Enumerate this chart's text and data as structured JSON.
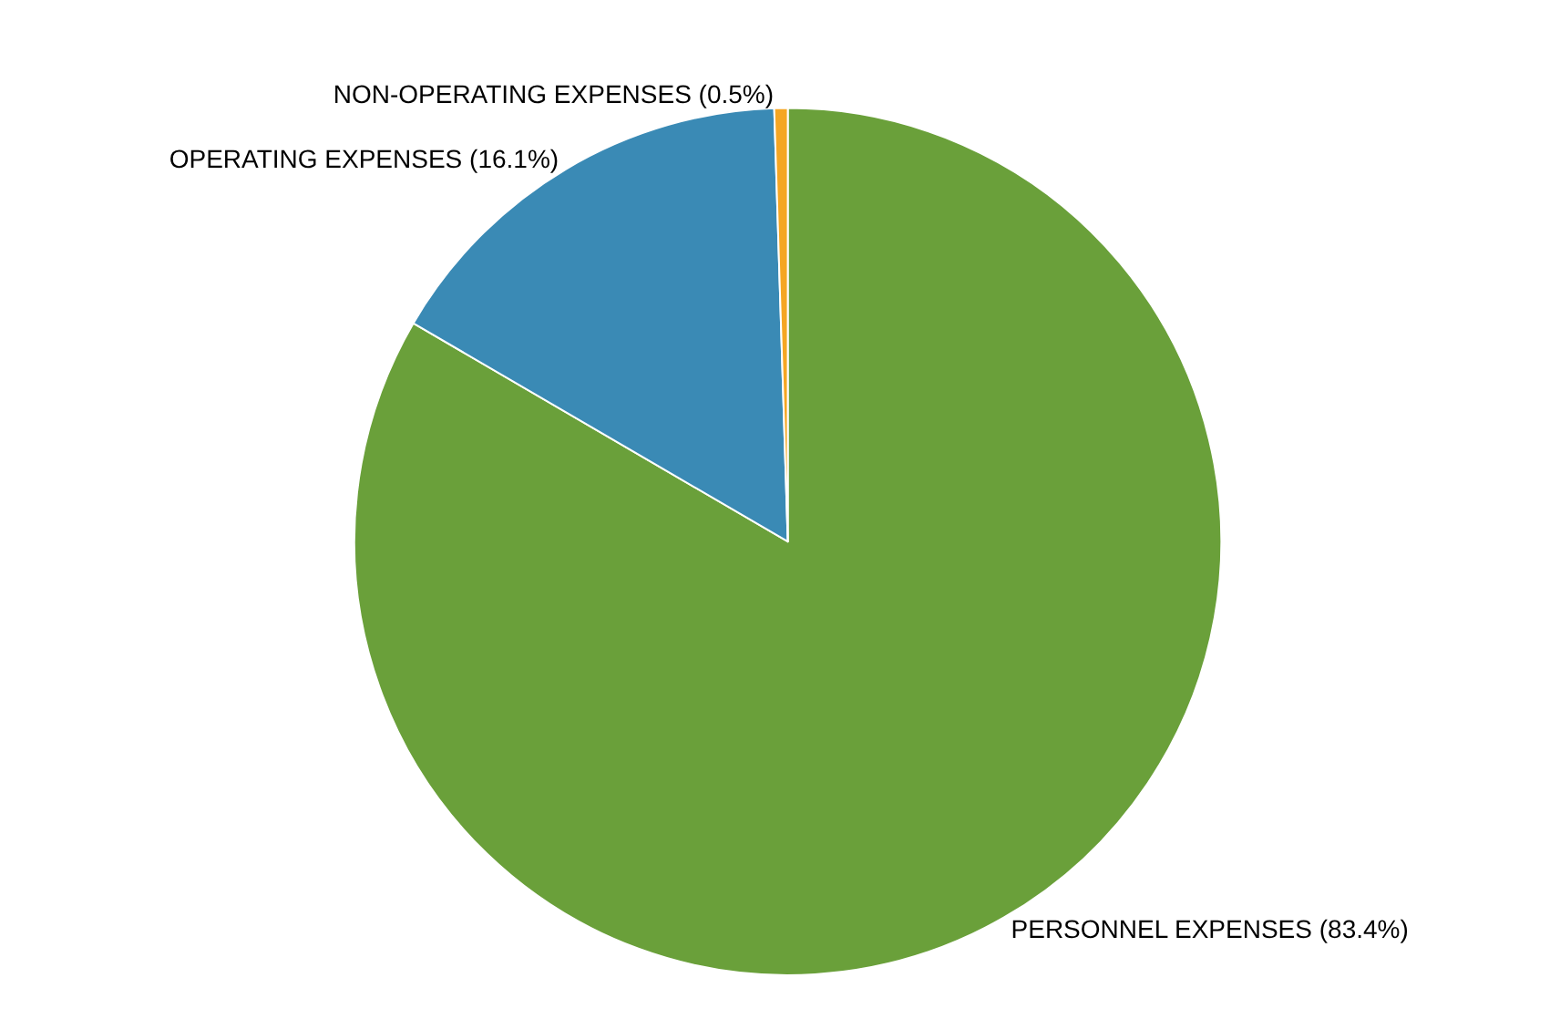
{
  "chart_data": {
    "type": "pie",
    "categories": [
      "PERSONNEL EXPENSES (83.4%)",
      "OPERATING EXPENSES (16.1%)",
      "NON-OPERATING EXPENSES (0.5%)"
    ],
    "values": [
      83.4,
      16.1,
      0.5
    ],
    "colors": [
      "#6aa03a",
      "#3a8ab5",
      "#f5a623"
    ],
    "legend": false
  }
}
